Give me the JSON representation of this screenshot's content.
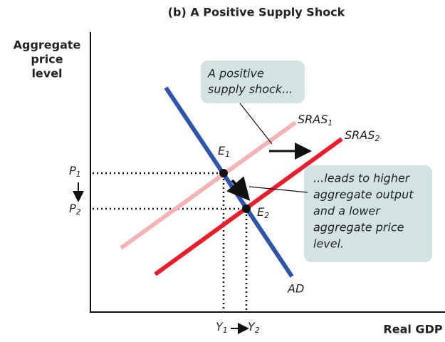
{
  "title": "(b) A Positive Supply Shock",
  "y_axis_label": [
    "Aggregate",
    "price",
    "level"
  ],
  "x_axis_label": "Real GDP",
  "callout_1": [
    "A positive",
    "supply shock..."
  ],
  "callout_2": [
    "...leads to higher",
    "aggregate output",
    "and a lower",
    "aggregate price",
    "level."
  ],
  "curves": {
    "sras_1": {
      "text": "SRAS",
      "sub": "1"
    },
    "sras_2": {
      "text": "SRAS",
      "sub": "2"
    },
    "ad": "AD"
  },
  "points": {
    "e_1": {
      "text": "E",
      "sub": "1"
    },
    "e_2": {
      "text": "E",
      "sub": "2"
    }
  },
  "price_labels": {
    "p_1": {
      "text": "P",
      "sub": "1"
    },
    "p_2": {
      "text": "P",
      "sub": "2"
    }
  },
  "output_labels": {
    "y_1": {
      "text": "Y",
      "sub": "1"
    },
    "y_2": {
      "text": "Y",
      "sub": "2"
    }
  }
}
